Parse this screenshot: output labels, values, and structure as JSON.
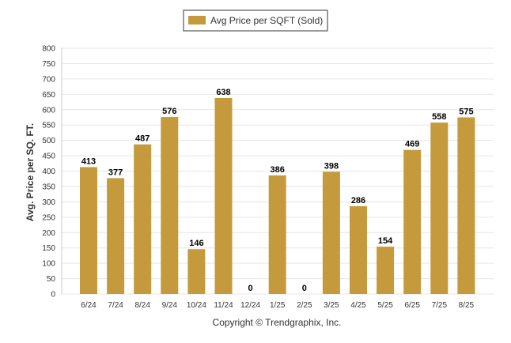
{
  "chart_data": {
    "type": "bar",
    "categories": [
      "6/24",
      "7/24",
      "8/24",
      "9/24",
      "10/24",
      "11/24",
      "12/24",
      "1/25",
      "2/25",
      "3/25",
      "4/25",
      "5/25",
      "6/25",
      "7/25",
      "8/25"
    ],
    "series": [
      {
        "name": "Avg Price per SQFT (Sold)",
        "values": [
          413,
          377,
          487,
          576,
          146,
          638,
          0,
          386,
          0,
          398,
          286,
          154,
          469,
          558,
          575
        ]
      }
    ],
    "ylabel": "Avg. Price per SQ. FT.",
    "xlabel": "",
    "ylim": [
      0,
      800
    ],
    "yticks": [
      0,
      50,
      100,
      150,
      200,
      250,
      300,
      350,
      400,
      450,
      500,
      550,
      600,
      650,
      700,
      750,
      800
    ],
    "grid": true,
    "legend_position": "top",
    "bar_color": "#c49a3c"
  },
  "footer": {
    "copyright": "Copyright © Trendgraphix, Inc."
  }
}
